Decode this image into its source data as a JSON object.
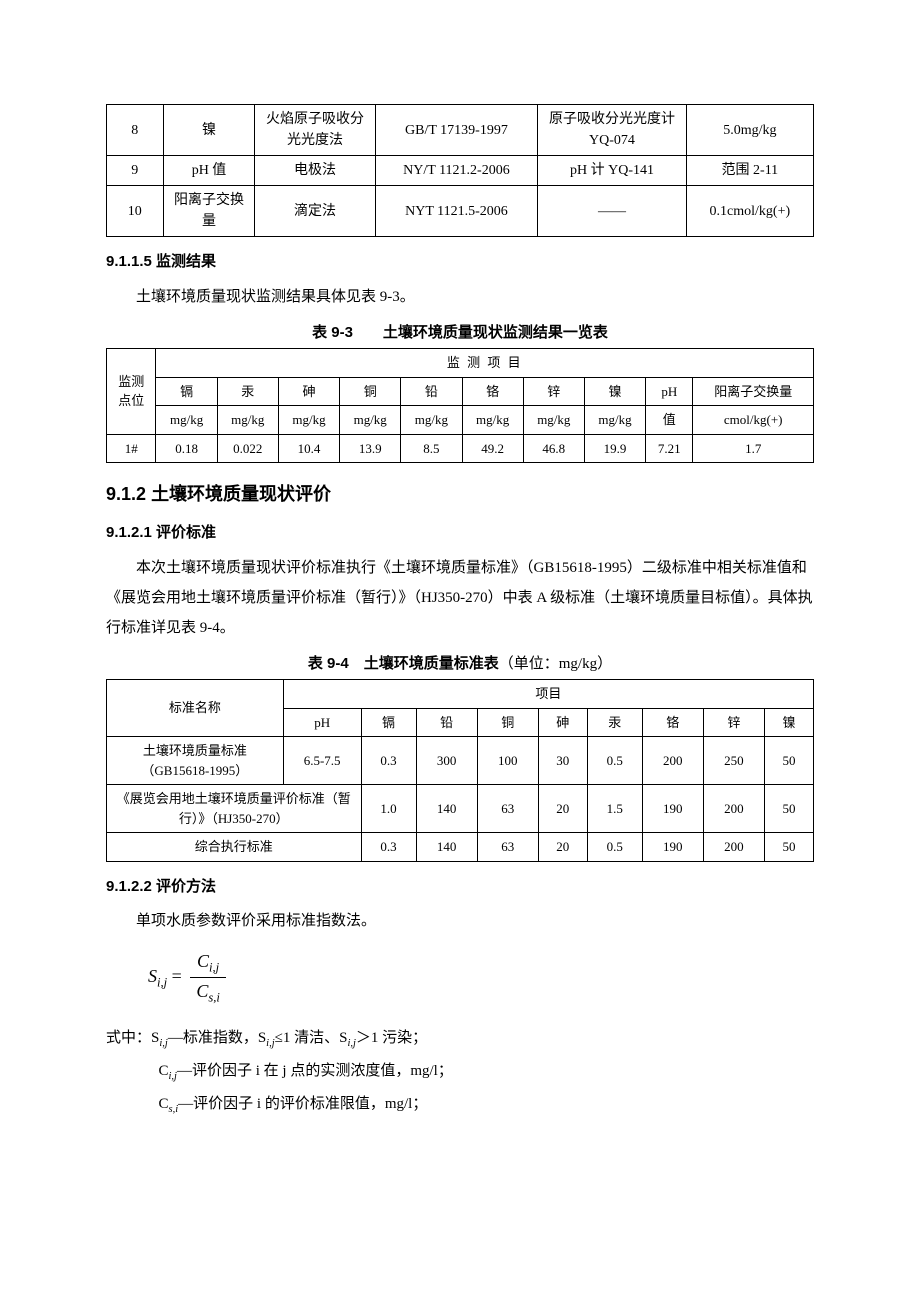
{
  "table1": {
    "rows": [
      [
        "8",
        "镍",
        "火焰原子吸收分光光度法",
        "GB/T 17139-1997",
        "原子吸收分光光度计 YQ-074",
        "5.0mg/kg"
      ],
      [
        "9",
        "pH 值",
        "电极法",
        "NY/T 1121.2-2006",
        "pH 计 YQ-141",
        "范围 2-11"
      ],
      [
        "10",
        "阳离子交换量",
        "滴定法",
        "NYT 1121.5-2006",
        "——",
        "0.1cmol/kg(+)"
      ]
    ],
    "col_widths": [
      "8%",
      "13%",
      "17%",
      "23%",
      "21%",
      "18%"
    ]
  },
  "sec9115": {
    "num": "9.1.1.5",
    "title": "监测结果",
    "para": "土壤环境质量现状监测结果具体见表 9-3。"
  },
  "table93": {
    "caption": "表 9-3　　土壤环境质量现状监测结果一览表",
    "group_left": "监测点位",
    "group_top": "监 测 项 目",
    "headers": [
      {
        "name": "镉",
        "unit": "mg/kg"
      },
      {
        "name": "汞",
        "unit": "mg/kg"
      },
      {
        "name": "砷",
        "unit": "mg/kg"
      },
      {
        "name": "铜",
        "unit": "mg/kg"
      },
      {
        "name": "铅",
        "unit": "mg/kg"
      },
      {
        "name": "铬",
        "unit": "mg/kg"
      },
      {
        "name": "锌",
        "unit": "mg/kg"
      },
      {
        "name": "镍",
        "unit": "mg/kg"
      },
      {
        "name": "pH",
        "unit": "值"
      },
      {
        "name": "阳离子交换量",
        "unit": "cmol/kg(+)"
      }
    ],
    "row": [
      "1#",
      "0.18",
      "0.022",
      "10.4",
      "13.9",
      "8.5",
      "49.2",
      "46.8",
      "19.9",
      "7.21",
      "1.7"
    ]
  },
  "sec912": {
    "num": "9.1.2",
    "title": "土壤环境质量现状评价"
  },
  "sec9121": {
    "num": "9.1.2.1",
    "title": "评价标准",
    "para": "本次土壤环境质量现状评价标准执行《土壤环境质量标准》（GB15618-1995）二级标准中相关标准值和《展览会用地土壤环境质量评价标准（暂行）》（HJ350-270）中表 A 级标准（土壤环境质量目标值）。具体执行标准详见表 9-4。"
  },
  "table94": {
    "caption": "表 9-4　土壤环境质量标准表",
    "caption_unit": "（单位：mg/kg）",
    "left_header": "标准名称",
    "top_header": "项目",
    "cols": [
      "pH",
      "镉",
      "铅",
      "铜",
      "砷",
      "汞",
      "铬",
      "锌",
      "镍"
    ],
    "rows": [
      {
        "name": "土壤环境质量标准（GB15618-1995）",
        "values": [
          "6.5-7.5",
          "0.3",
          "300",
          "100",
          "30",
          "0.5",
          "200",
          "250",
          "50"
        ]
      },
      {
        "name": "《展览会用地土壤环境质量评价标准（暂行）》（HJ350-270）",
        "values": [
          "",
          "1.0",
          "140",
          "63",
          "20",
          "1.5",
          "190",
          "200",
          "50"
        ],
        "skip_ph": true
      },
      {
        "name": "综合执行标准",
        "values": [
          "",
          "0.3",
          "140",
          "63",
          "20",
          "0.5",
          "190",
          "200",
          "50"
        ],
        "skip_ph": true
      }
    ]
  },
  "sec9122": {
    "num": "9.1.2.2",
    "title": "评价方法",
    "para": "单项水质参数评价采用标准指数法。"
  },
  "formula": {
    "lhs": "S",
    "lhs_sub": "i,j",
    "num": "C",
    "num_sub": "i,j",
    "den": "C",
    "den_sub": "s,i"
  },
  "defs": {
    "intro": "式中：",
    "items": [
      {
        "sym": "S",
        "sub": "i,j",
        "text": "—标准指数，S",
        "sym2": "",
        "sub2": "i,j",
        "text2": "≤1 清洁、S",
        "sub3": "i,j",
        "text3": "＞1 污染；"
      },
      {
        "sym": "C",
        "sub": "i,j",
        "text": "—评价因子 i 在 j 点的实测浓度值，mg/l；"
      },
      {
        "sym": "C",
        "sub": "s,i",
        "text": "—评价因子 i 的评价标准限值，mg/l；"
      }
    ]
  }
}
